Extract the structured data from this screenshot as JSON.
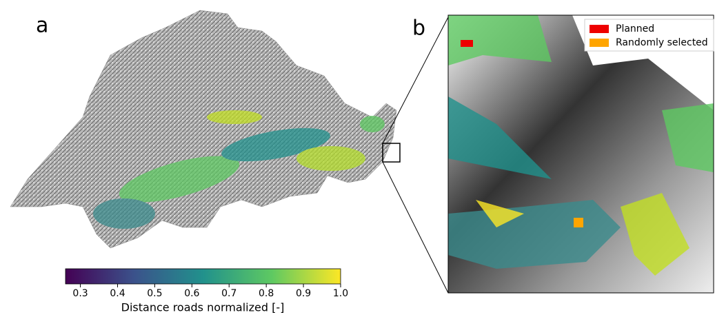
{
  "chart_data": {
    "type": "colorbar",
    "xlabel": "Distance roads normalized [-]",
    "xlim": [
      0.26,
      1.0
    ],
    "xticks": [
      0.3,
      0.4,
      0.5,
      0.6,
      0.7,
      0.8,
      0.9,
      {
        "value": 1.0,
        "label": "1.0"
      }
    ],
    "annotations": [
      "a",
      "b"
    ],
    "legend": [
      {
        "name": "Planned",
        "color": "#ee0000"
      },
      {
        "name": "Randomly selected",
        "color": "#ffa500"
      }
    ]
  }
}
